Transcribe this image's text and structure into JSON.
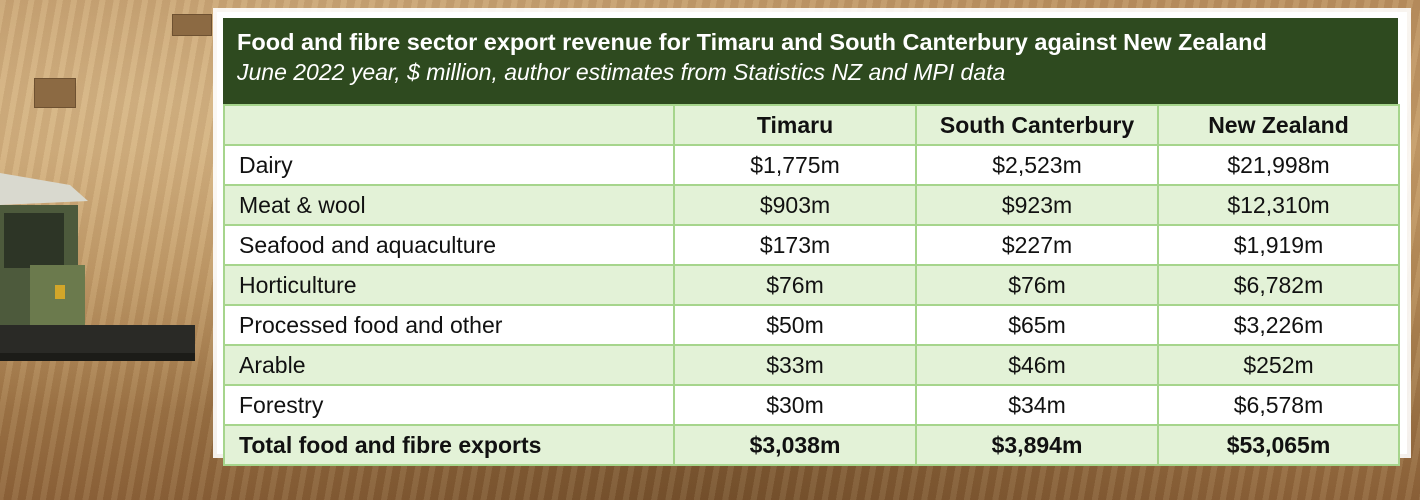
{
  "chart_data": {
    "type": "table",
    "title": "Food and fibre sector export revenue for Timaru and South Canterbury against New Zealand",
    "subtitle": "June 2022 year, $ million, author estimates from Statistics NZ and MPI data",
    "columns": [
      "",
      "Timaru",
      "South Canterbury",
      "New Zealand"
    ],
    "rows": [
      {
        "label": "Dairy",
        "values": [
          "$1,775m",
          "$2,523m",
          "$21,998m"
        ]
      },
      {
        "label": "Meat & wool",
        "values": [
          "$903m",
          "$923m",
          "$12,310m"
        ]
      },
      {
        "label": "Seafood and aquaculture",
        "values": [
          "$173m",
          "$227m",
          "$1,919m"
        ]
      },
      {
        "label": "Horticulture",
        "values": [
          "$76m",
          "$76m",
          "$6,782m"
        ]
      },
      {
        "label": "Processed food and other",
        "values": [
          "$50m",
          "$65m",
          "$3,226m"
        ]
      },
      {
        "label": "Arable",
        "values": [
          "$33m",
          "$46m",
          "$252m"
        ]
      },
      {
        "label": "Forestry",
        "values": [
          "$30m",
          "$34m",
          "$6,578m"
        ]
      }
    ],
    "total": {
      "label": "Total food and fibre exports",
      "values": [
        "$3,038m",
        "$3,894m",
        "$53,065m"
      ]
    }
  },
  "colors": {
    "header_bg": "#2e4a1f",
    "row_alt_bg": "#e3f2d7",
    "grid_line": "#a6d58c"
  }
}
